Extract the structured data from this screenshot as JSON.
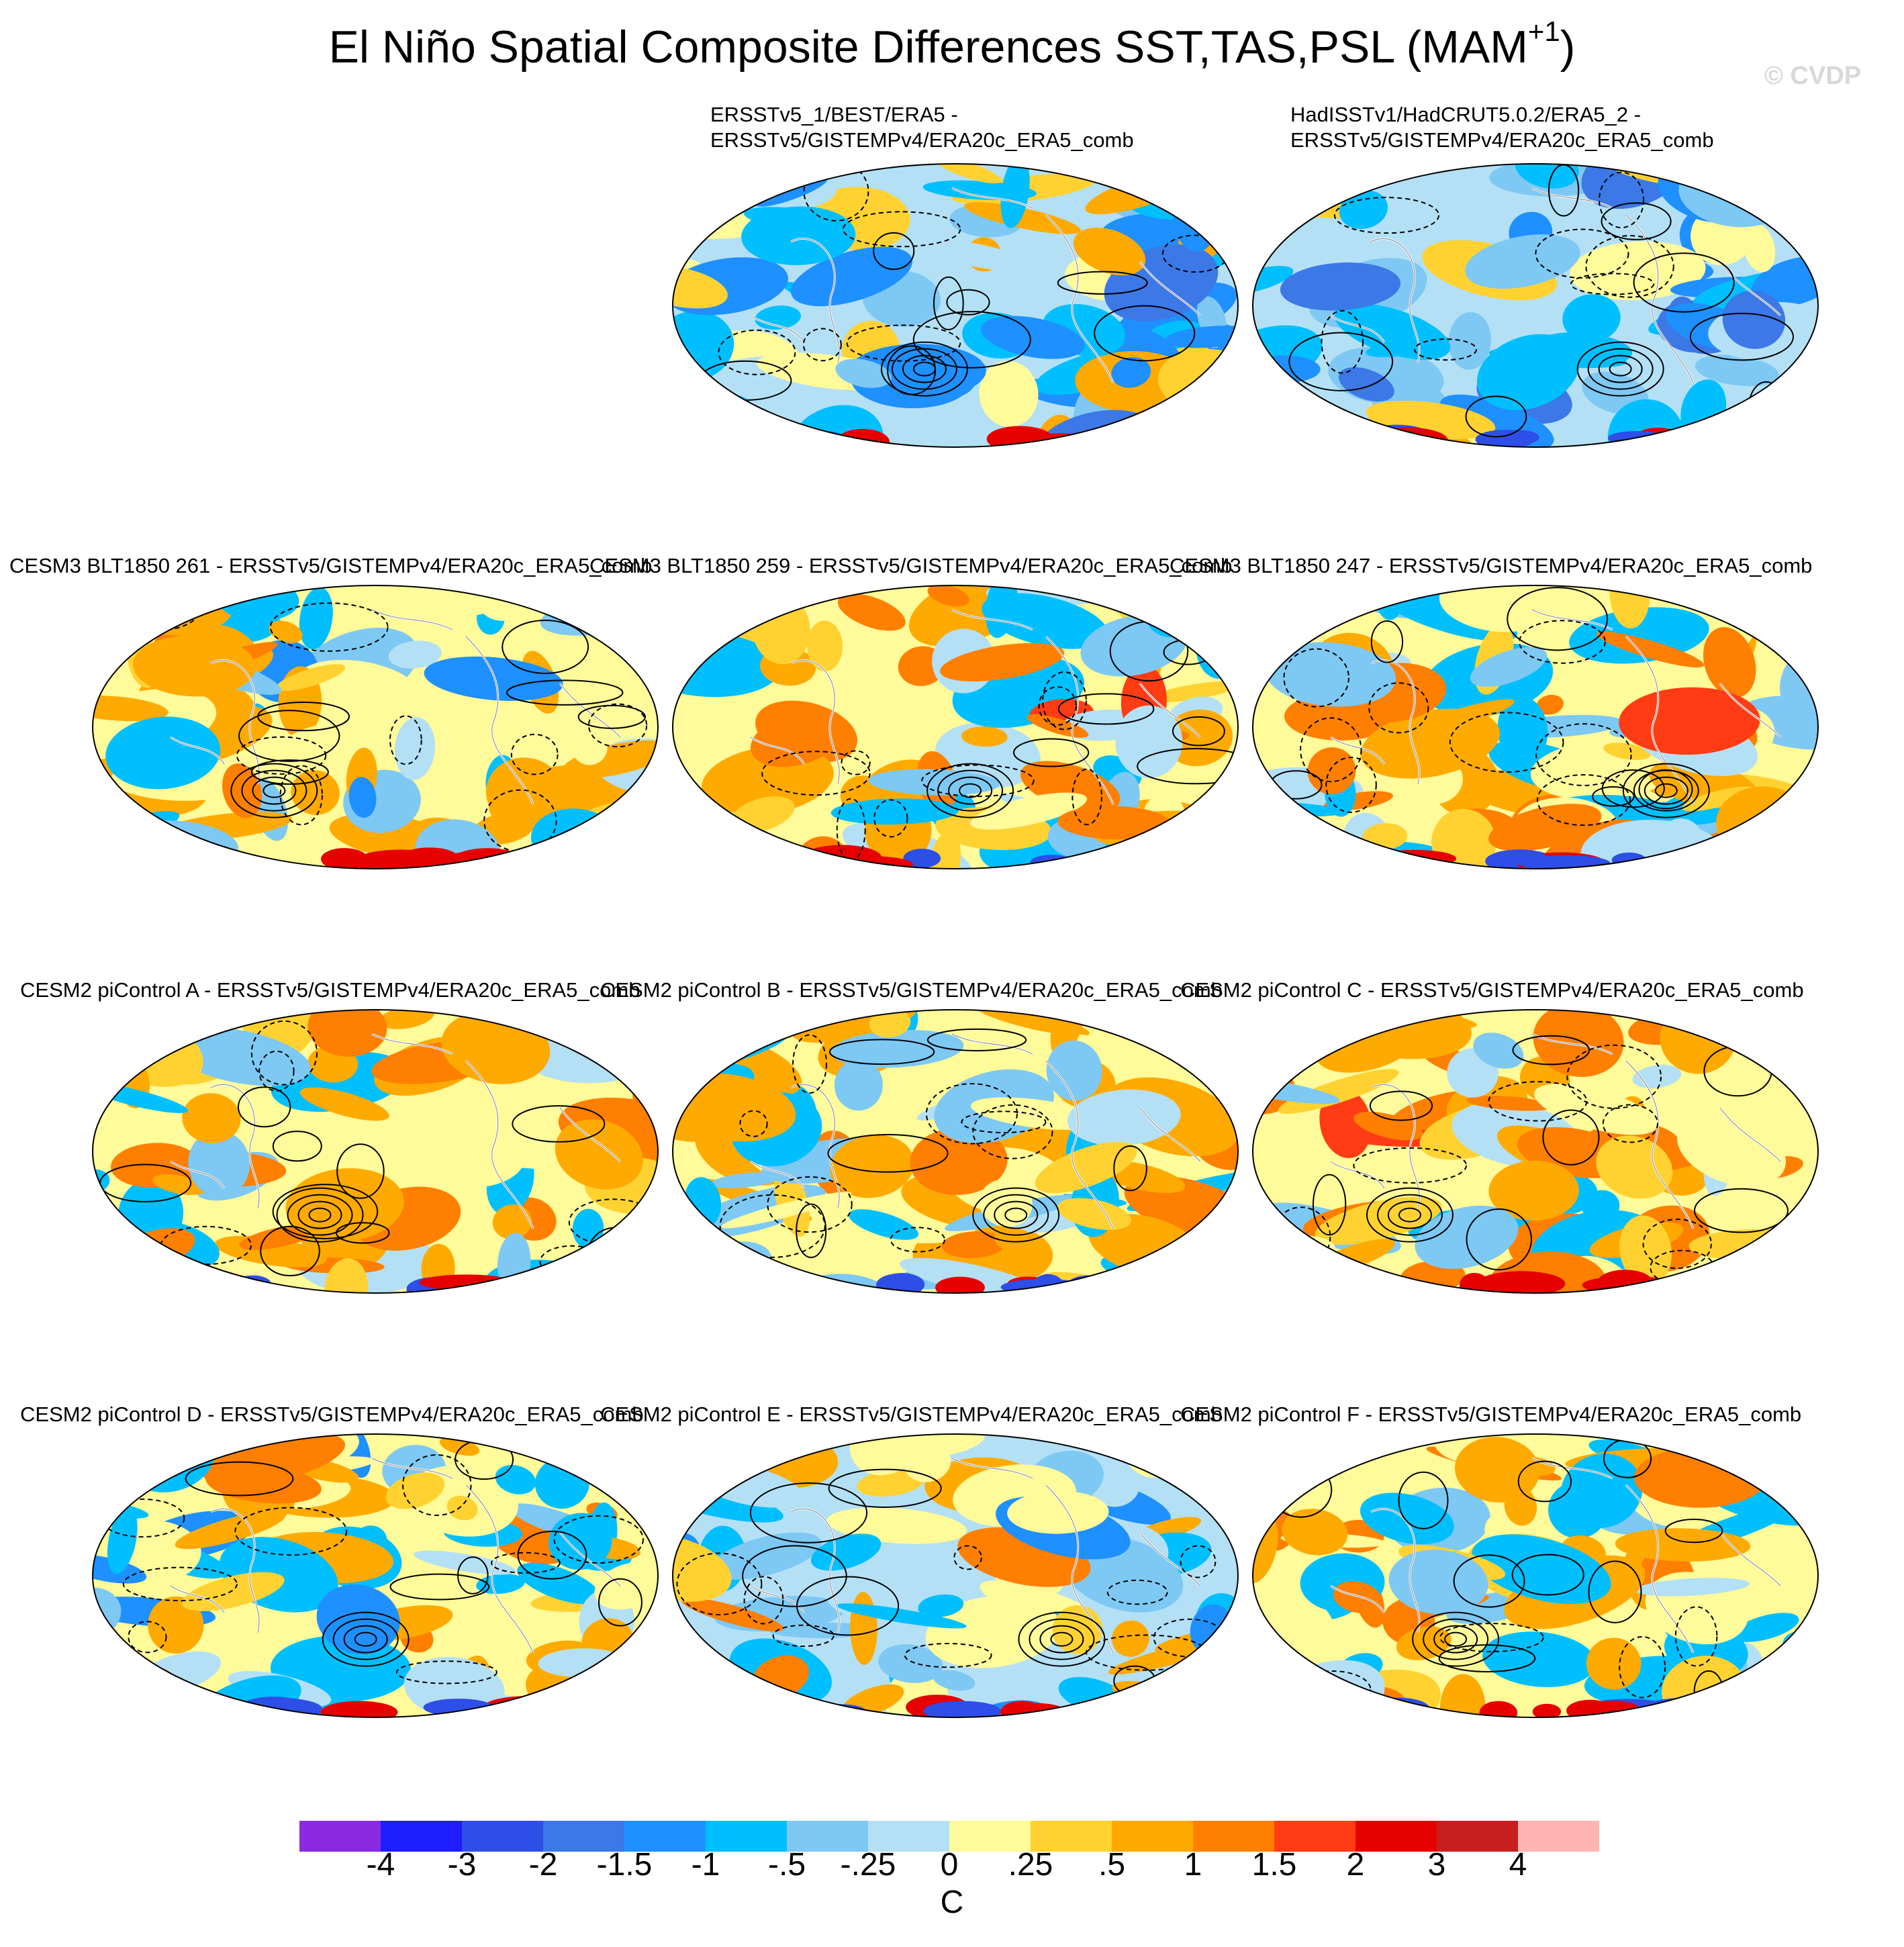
{
  "title": {
    "main": "El Niño Spatial Composite Differences SST,TAS,PSL (MAM",
    "superscript": "+1",
    "close": ")"
  },
  "watermark": "© CVDP",
  "panels": [
    {
      "id": "obs1",
      "line1": "ERSSTv5_1/BEST/ERA5 -",
      "line2": "ERSSTv5/GISTEMPv4/ERA20c_ERA5_comb"
    },
    {
      "id": "obs2",
      "line1": "HadISSTv1/HadCRUT5.0.2/ERA5_2 -",
      "line2": "ERSSTv5/GISTEMPv4/ERA20c_ERA5_comb"
    },
    {
      "id": "blt261",
      "line1": "CESM3 BLT1850 261 - ERSSTv5/GISTEMPv4/ERA20c_ERA5_comb"
    },
    {
      "id": "blt259",
      "line1": "CESM3 BLT1850 259 - ERSSTv5/GISTEMPv4/ERA20c_ERA5_comb"
    },
    {
      "id": "blt247",
      "line1": "CESM3 BLT1850 247 - ERSSTv5/GISTEMPv4/ERA20c_ERA5_comb"
    },
    {
      "id": "picA",
      "line1": "CESM2 piControl A - ERSSTv5/GISTEMPv4/ERA20c_ERA5_comb"
    },
    {
      "id": "picB",
      "line1": "CESM2 piControl B - ERSSTv5/GISTEMPv4/ERA20c_ERA5_comb"
    },
    {
      "id": "picC",
      "line1": "CESM2 piControl C - ERSSTv5/GISTEMPv4/ERA20c_ERA5_comb"
    },
    {
      "id": "picD",
      "line1": "CESM2 piControl D - ERSSTv5/GISTEMPv4/ERA20c_ERA5_comb"
    },
    {
      "id": "picE",
      "line1": "CESM2 piControl E - ERSSTv5/GISTEMPv4/ERA20c_ERA5_comb"
    },
    {
      "id": "picF",
      "line1": "CESM2 piControl F - ERSSTv5/GISTEMPv4/ERA20c_ERA5_comb"
    }
  ],
  "colorbar": {
    "labels": [
      "-4",
      "-3",
      "-2",
      "-1.5",
      "-1",
      "-.5",
      "-.25",
      "0",
      ".25",
      ".5",
      "1",
      "1.5",
      "2",
      "3",
      "4"
    ],
    "colors": [
      "#8a2be2",
      "#1e1eff",
      "#2e4ee8",
      "#3c78e6",
      "#1e90ff",
      "#00bfff",
      "#7ec8f4",
      "#b4e0f5",
      "#fffa9a",
      "#ffd232",
      "#ffaa00",
      "#ff7f00",
      "#ff3c14",
      "#e60000",
      "#c81e1e",
      "#ffb4b4"
    ],
    "units": "C"
  }
}
